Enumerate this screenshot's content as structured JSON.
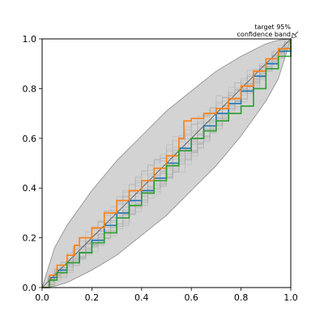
{
  "chart_data": {
    "type": "line",
    "title": "",
    "xlabel": "",
    "ylabel": "",
    "xlim": [
      0,
      1
    ],
    "ylim": [
      0,
      1
    ],
    "grid": false,
    "legend": "none",
    "xticks": [
      "0.0",
      "0.2",
      "0.4",
      "0.6",
      "0.8",
      "1.0"
    ],
    "yticks": [
      "0.0",
      "0.2",
      "0.4",
      "0.6",
      "0.8",
      "1.0"
    ],
    "xtick_values": [
      0,
      0.2,
      0.4,
      0.6,
      0.8,
      1.0
    ],
    "ytick_values": [
      0,
      0.2,
      0.4,
      0.6,
      0.8,
      1.0
    ],
    "annotation": {
      "lines": [
        "target 95%",
        "confidence band"
      ],
      "points_to": [
        1.0,
        1.0
      ]
    },
    "confidence_band": {
      "x": [
        0,
        0.05,
        0.1,
        0.2,
        0.3,
        0.4,
        0.5,
        0.6,
        0.7,
        0.8,
        0.9,
        0.95,
        1.0
      ],
      "lower": [
        0,
        0.005,
        0.02,
        0.07,
        0.13,
        0.21,
        0.29,
        0.39,
        0.49,
        0.61,
        0.75,
        0.84,
        1.0
      ],
      "upper": [
        0,
        0.16,
        0.25,
        0.39,
        0.51,
        0.61,
        0.71,
        0.79,
        0.87,
        0.93,
        0.98,
        0.995,
        1.0
      ],
      "color": "#d3d3d3"
    },
    "reference_line": {
      "x": [
        0,
        1
      ],
      "y": [
        0,
        1
      ],
      "color": "#555555"
    },
    "background_series_color": "#a9a9a9",
    "series": [
      {
        "color": "#1f77b4",
        "x": [
          0,
          0.03,
          0.06,
          0.1,
          0.15,
          0.2,
          0.25,
          0.3,
          0.35,
          0.4,
          0.45,
          0.5,
          0.55,
          0.6,
          0.65,
          0.7,
          0.75,
          0.8,
          0.85,
          0.9,
          0.95,
          1.0
        ],
        "y": [
          0,
          0.04,
          0.07,
          0.1,
          0.14,
          0.19,
          0.25,
          0.3,
          0.35,
          0.39,
          0.44,
          0.5,
          0.56,
          0.6,
          0.65,
          0.7,
          0.74,
          0.79,
          0.85,
          0.9,
          0.95,
          1.0
        ]
      },
      {
        "color": "#ff7f0e",
        "x": [
          0,
          0.03,
          0.06,
          0.1,
          0.13,
          0.15,
          0.2,
          0.25,
          0.3,
          0.35,
          0.4,
          0.45,
          0.5,
          0.55,
          0.57,
          0.6,
          0.65,
          0.7,
          0.75,
          0.8,
          0.85,
          0.9,
          0.95,
          1.0
        ],
        "y": [
          0,
          0.05,
          0.09,
          0.13,
          0.17,
          0.2,
          0.24,
          0.3,
          0.35,
          0.39,
          0.43,
          0.48,
          0.53,
          0.6,
          0.67,
          0.68,
          0.7,
          0.72,
          0.76,
          0.81,
          0.87,
          0.92,
          0.96,
          1.0
        ]
      },
      {
        "color": "#2ca02c",
        "x": [
          0,
          0.03,
          0.06,
          0.1,
          0.15,
          0.2,
          0.25,
          0.3,
          0.35,
          0.4,
          0.45,
          0.5,
          0.55,
          0.6,
          0.65,
          0.7,
          0.75,
          0.8,
          0.85,
          0.9,
          0.95,
          1.0
        ],
        "y": [
          0,
          0.03,
          0.06,
          0.1,
          0.14,
          0.18,
          0.22,
          0.28,
          0.33,
          0.38,
          0.43,
          0.49,
          0.55,
          0.6,
          0.63,
          0.67,
          0.7,
          0.73,
          0.8,
          0.88,
          0.93,
          1.0
        ]
      }
    ]
  }
}
